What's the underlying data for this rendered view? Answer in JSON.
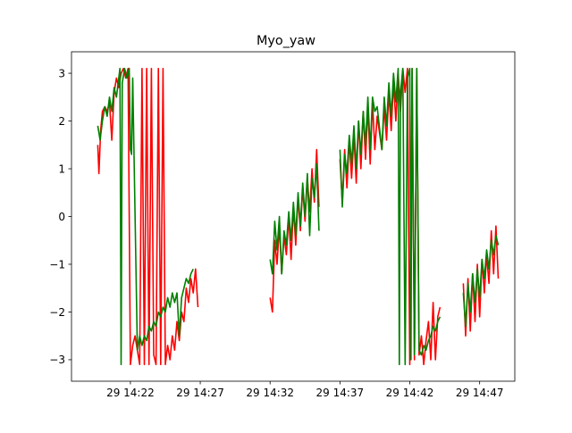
{
  "chart_data": {
    "type": "line",
    "title": "Myo_yaw",
    "xlabel": "",
    "ylabel": "",
    "x_axis_kind": "time",
    "xlim": [
      "29 14:17:47",
      "29 14:49:31"
    ],
    "ylim": [
      -3.45,
      3.45
    ],
    "x_ticks": [
      {
        "value": "29 14:22",
        "label": "29 14:22"
      },
      {
        "value": "29 14:27",
        "label": "29 14:27"
      },
      {
        "value": "29 14:32",
        "label": "29 14:32"
      },
      {
        "value": "29 14:37",
        "label": "29 14:37"
      },
      {
        "value": "29 14:42",
        "label": "29 14:42"
      },
      {
        "value": "29 14:47",
        "label": "29 14:47"
      }
    ],
    "y_ticks": [
      {
        "value": -3,
        "label": "−3"
      },
      {
        "value": -2,
        "label": "−2"
      },
      {
        "value": -1,
        "label": "−1"
      },
      {
        "value": 0,
        "label": "0"
      },
      {
        "value": 1,
        "label": "1"
      },
      {
        "value": 2,
        "label": "2"
      },
      {
        "value": 3,
        "label": "3"
      }
    ],
    "grid": false,
    "legend": "none",
    "series": [
      {
        "color": "#ff0000",
        "points": [
          [
            "29 14:19:40",
            1.5
          ],
          [
            "29 14:19:45",
            0.9
          ],
          [
            "29 14:19:52",
            1.8
          ],
          [
            "29 14:20:00",
            2.2
          ],
          [
            "29 14:20:10",
            2.3
          ],
          [
            "29 14:20:20",
            2.2
          ],
          [
            "29 14:20:30",
            2.4
          ],
          [
            "29 14:20:40",
            1.6
          ],
          [
            "29 14:20:50",
            2.6
          ],
          [
            "29 14:21:00",
            2.9
          ],
          [
            "29 14:21:10",
            2.7
          ],
          [
            "29 14:21:20",
            3.0
          ],
          [
            "29 14:21:30",
            3.1
          ],
          [
            "29 14:21:40",
            2.9
          ],
          [
            "29 14:21:50",
            3.1
          ],
          [
            "29 14:22:00",
            -3.1
          ],
          [
            "29 14:22:10",
            -2.7
          ],
          [
            "29 14:22:20",
            -2.5
          ],
          [
            "29 14:22:30",
            -2.8
          ],
          [
            "29 14:22:40",
            -3.1
          ],
          [
            "29 14:22:50",
            3.1
          ],
          [
            "29 14:23:00",
            -3.1
          ],
          [
            "29 14:23:10",
            3.1
          ],
          [
            "29 14:23:20",
            -3.1
          ],
          [
            "29 14:23:30",
            3.1
          ],
          [
            "29 14:23:40",
            -2.9
          ],
          [
            "29 14:23:50",
            -3.1
          ],
          [
            "29 14:24:00",
            3.1
          ],
          [
            "29 14:24:10",
            -3.1
          ],
          [
            "29 14:24:20",
            3.1
          ],
          [
            "29 14:24:30",
            -3.1
          ],
          [
            "29 14:24:40",
            -2.7
          ],
          [
            "29 14:24:50",
            -3.0
          ],
          [
            "29 14:25:00",
            -2.5
          ],
          [
            "29 14:25:10",
            -2.8
          ],
          [
            "29 14:25:20",
            -2.2
          ],
          [
            "29 14:25:30",
            -2.6
          ],
          [
            "29 14:25:40",
            -2.0
          ],
          [
            "29 14:25:50",
            -2.2
          ],
          [
            "29 14:26:00",
            -1.5
          ],
          [
            "29 14:26:10",
            -1.8
          ],
          [
            "29 14:26:20",
            -1.3
          ],
          [
            "29 14:26:30",
            -1.6
          ],
          [
            "29 14:26:40",
            -1.1
          ],
          [
            "29 14:26:50",
            -1.9
          ],
          [
            "29 14:32:00",
            -1.7
          ],
          [
            "29 14:32:10",
            -2.0
          ],
          [
            "29 14:32:20",
            -0.5
          ],
          [
            "29 14:32:30",
            -1.0
          ],
          [
            "29 14:32:40",
            -0.2
          ],
          [
            "29 14:32:50",
            -1.2
          ],
          [
            "29 14:33:00",
            -0.4
          ],
          [
            "29 14:33:10",
            -0.8
          ],
          [
            "29 14:33:20",
            0.0
          ],
          [
            "29 14:33:30",
            -0.9
          ],
          [
            "29 14:33:40",
            0.2
          ],
          [
            "29 14:33:50",
            -0.6
          ],
          [
            "29 14:34:00",
            0.4
          ],
          [
            "29 14:34:10",
            -0.3
          ],
          [
            "29 14:34:20",
            0.6
          ],
          [
            "29 14:34:30",
            -0.1
          ],
          [
            "29 14:34:40",
            0.8
          ],
          [
            "29 14:34:50",
            0.1
          ],
          [
            "29 14:35:00",
            1.0
          ],
          [
            "29 14:35:10",
            0.3
          ],
          [
            "29 14:35:20",
            1.4
          ],
          [
            "29 14:35:30",
            0.2
          ],
          [
            "29 14:37:00",
            1.2
          ],
          [
            "29 14:37:10",
            0.3
          ],
          [
            "29 14:37:20",
            1.4
          ],
          [
            "29 14:37:30",
            0.6
          ],
          [
            "29 14:37:40",
            1.6
          ],
          [
            "29 14:37:50",
            0.8
          ],
          [
            "29 14:38:00",
            1.7
          ],
          [
            "29 14:38:10",
            0.7
          ],
          [
            "29 14:38:20",
            2.0
          ],
          [
            "29 14:38:30",
            1.0
          ],
          [
            "29 14:38:40",
            2.2
          ],
          [
            "29 14:38:50",
            1.2
          ],
          [
            "29 14:39:00",
            2.3
          ],
          [
            "29 14:39:10",
            1.1
          ],
          [
            "29 14:39:20",
            2.4
          ],
          [
            "29 14:39:30",
            1.4
          ],
          [
            "29 14:39:40",
            2.1
          ],
          [
            "29 14:40:00",
            1.4
          ],
          [
            "29 14:40:10",
            2.3
          ],
          [
            "29 14:40:20",
            1.6
          ],
          [
            "29 14:40:30",
            2.6
          ],
          [
            "29 14:40:40",
            1.8
          ],
          [
            "29 14:40:50",
            2.8
          ],
          [
            "29 14:41:00",
            2.0
          ],
          [
            "29 14:41:10",
            3.0
          ],
          [
            "29 14:41:20",
            2.2
          ],
          [
            "29 14:41:30",
            3.1
          ],
          [
            "29 14:41:40",
            2.6
          ],
          [
            "29 14:41:50",
            3.1
          ],
          [
            "29 14:42:00",
            -3.1
          ],
          [
            "29 14:42:10",
            3.1
          ],
          [
            "29 14:42:20",
            -3.0
          ],
          [
            "29 14:42:30",
            3.1
          ],
          [
            "29 14:42:40",
            -2.9
          ],
          [
            "29 14:42:50",
            -2.5
          ],
          [
            "29 14:43:00",
            -3.1
          ],
          [
            "29 14:43:10",
            -2.6
          ],
          [
            "29 14:43:20",
            -2.2
          ],
          [
            "29 14:43:30",
            -3.0
          ],
          [
            "29 14:43:40",
            -1.8
          ],
          [
            "29 14:43:50",
            -3.0
          ],
          [
            "29 14:44:00",
            -2.1
          ],
          [
            "29 14:44:10",
            -1.9
          ],
          [
            "29 14:45:50",
            -1.4
          ],
          [
            "29 14:46:00",
            -2.5
          ],
          [
            "29 14:46:10",
            -1.3
          ],
          [
            "29 14:46:20",
            -2.4
          ],
          [
            "29 14:46:30",
            -1.2
          ],
          [
            "29 14:46:40",
            -2.2
          ],
          [
            "29 14:46:50",
            -1.0
          ],
          [
            "29 14:47:00",
            -2.1
          ],
          [
            "29 14:47:10",
            -0.9
          ],
          [
            "29 14:47:20",
            -1.6
          ],
          [
            "29 14:47:30",
            -0.8
          ],
          [
            "29 14:47:40",
            -1.4
          ],
          [
            "29 14:47:50",
            -0.3
          ],
          [
            "29 14:48:00",
            -1.2
          ],
          [
            "29 14:48:10",
            -0.2
          ],
          [
            "29 14:48:20",
            -1.3
          ]
        ]
      },
      {
        "color": "#008000",
        "points": [
          [
            "29 14:19:40",
            1.9
          ],
          [
            "29 14:19:50",
            1.6
          ],
          [
            "29 14:20:00",
            2.0
          ],
          [
            "29 14:20:10",
            2.3
          ],
          [
            "29 14:20:20",
            2.1
          ],
          [
            "29 14:20:30",
            2.5
          ],
          [
            "29 14:20:40",
            2.2
          ],
          [
            "29 14:20:50",
            2.7
          ],
          [
            "29 14:21:00",
            2.5
          ],
          [
            "29 14:21:10",
            2.9
          ],
          [
            "29 14:21:15",
            3.1
          ],
          [
            "29 14:21:20",
            -3.1
          ],
          [
            "29 14:21:25",
            2.8
          ],
          [
            "29 14:21:35",
            3.1
          ],
          [
            "29 14:21:45",
            2.9
          ],
          [
            "29 14:21:55",
            3.1
          ],
          [
            "29 14:22:00",
            1.4
          ],
          [
            "29 14:22:05",
            1.3
          ],
          [
            "29 14:22:10",
            2.9
          ],
          [
            "29 14:22:30",
            -2.8
          ],
          [
            "29 14:22:40",
            -2.5
          ],
          [
            "29 14:22:50",
            -2.7
          ],
          [
            "29 14:23:00",
            -2.5
          ],
          [
            "29 14:23:10",
            -2.6
          ],
          [
            "29 14:23:20",
            -2.3
          ],
          [
            "29 14:23:30",
            -2.4
          ],
          [
            "29 14:23:40",
            -2.2
          ],
          [
            "29 14:23:50",
            -2.3
          ],
          [
            "29 14:24:00",
            -2.0
          ],
          [
            "29 14:24:10",
            -2.1
          ],
          [
            "29 14:24:20",
            -1.9
          ],
          [
            "29 14:24:30",
            -2.0
          ],
          [
            "29 14:24:40",
            -1.7
          ],
          [
            "29 14:24:50",
            -1.9
          ],
          [
            "29 14:25:00",
            -1.6
          ],
          [
            "29 14:25:10",
            -1.8
          ],
          [
            "29 14:25:20",
            -1.6
          ],
          [
            "29 14:25:30",
            -2.5
          ],
          [
            "29 14:25:40",
            -1.7
          ],
          [
            "29 14:25:50",
            -1.5
          ],
          [
            "29 14:26:00",
            -1.3
          ],
          [
            "29 14:26:10",
            -1.4
          ],
          [
            "29 14:26:20",
            -1.2
          ],
          [
            "29 14:26:30",
            -1.1
          ],
          [
            "29 14:32:00",
            -0.9
          ],
          [
            "29 14:32:10",
            -1.2
          ],
          [
            "29 14:32:20",
            -0.1
          ],
          [
            "29 14:32:30",
            -0.7
          ],
          [
            "29 14:32:40",
            0.0
          ],
          [
            "29 14:32:50",
            -1.2
          ],
          [
            "29 14:33:00",
            -0.3
          ],
          [
            "29 14:33:10",
            -0.6
          ],
          [
            "29 14:33:20",
            0.1
          ],
          [
            "29 14:33:30",
            -0.5
          ],
          [
            "29 14:33:40",
            0.3
          ],
          [
            "29 14:33:50",
            -0.4
          ],
          [
            "29 14:34:00",
            0.5
          ],
          [
            "29 14:34:10",
            -0.2
          ],
          [
            "29 14:34:20",
            0.7
          ],
          [
            "29 14:34:30",
            0.0
          ],
          [
            "29 14:34:40",
            0.9
          ],
          [
            "29 14:34:50",
            -0.4
          ],
          [
            "29 14:35:00",
            0.8
          ],
          [
            "29 14:35:10",
            0.4
          ],
          [
            "29 14:35:20",
            1.1
          ],
          [
            "29 14:35:30",
            -0.3
          ],
          [
            "29 14:37:00",
            1.4
          ],
          [
            "29 14:37:10",
            0.2
          ],
          [
            "29 14:37:20",
            1.3
          ],
          [
            "29 14:37:30",
            0.9
          ],
          [
            "29 14:37:40",
            1.7
          ],
          [
            "29 14:37:50",
            1.1
          ],
          [
            "29 14:38:00",
            1.9
          ],
          [
            "29 14:38:10",
            1.0
          ],
          [
            "29 14:38:20",
            2.0
          ],
          [
            "29 14:38:30",
            1.3
          ],
          [
            "29 14:38:40",
            2.2
          ],
          [
            "29 14:38:50",
            1.5
          ],
          [
            "29 14:39:00",
            2.5
          ],
          [
            "29 14:39:10",
            1.4
          ],
          [
            "29 14:39:20",
            2.5
          ],
          [
            "29 14:39:30",
            2.2
          ],
          [
            "29 14:39:40",
            2.3
          ],
          [
            "29 14:40:00",
            1.4
          ],
          [
            "29 14:40:10",
            2.5
          ],
          [
            "29 14:40:20",
            1.9
          ],
          [
            "29 14:40:30",
            2.8
          ],
          [
            "29 14:40:40",
            2.1
          ],
          [
            "29 14:40:50",
            3.0
          ],
          [
            "29 14:41:00",
            2.4
          ],
          [
            "29 14:41:10",
            3.1
          ],
          [
            "29 14:41:15",
            -3.1
          ],
          [
            "29 14:41:20",
            2.6
          ],
          [
            "29 14:41:30",
            3.1
          ],
          [
            "29 14:41:40",
            -3.1
          ],
          [
            "29 14:41:50",
            2.9
          ],
          [
            "29 14:42:00",
            3.1
          ],
          [
            "29 14:42:05",
            -3.0
          ],
          [
            "29 14:42:10",
            3.1
          ],
          [
            "29 14:42:20",
            -2.9
          ],
          [
            "29 14:42:30",
            3.1
          ],
          [
            "29 14:42:40",
            -2.8
          ],
          [
            "29 14:42:50",
            -2.9
          ],
          [
            "29 14:43:00",
            -2.7
          ],
          [
            "29 14:43:10",
            -2.8
          ],
          [
            "29 14:43:20",
            -2.6
          ],
          [
            "29 14:43:30",
            -2.5
          ],
          [
            "29 14:43:40",
            -2.3
          ],
          [
            "29 14:43:50",
            -2.4
          ],
          [
            "29 14:44:00",
            -2.2
          ],
          [
            "29 14:44:10",
            -2.1
          ],
          [
            "29 14:45:50",
            -1.6
          ],
          [
            "29 14:46:00",
            -2.3
          ],
          [
            "29 14:46:10",
            -1.4
          ],
          [
            "29 14:46:20",
            -2.0
          ],
          [
            "29 14:46:30",
            -1.2
          ],
          [
            "29 14:46:40",
            -1.8
          ],
          [
            "29 14:46:50",
            -1.1
          ],
          [
            "29 14:47:00",
            -1.7
          ],
          [
            "29 14:47:10",
            -0.9
          ],
          [
            "29 14:47:20",
            -1.3
          ],
          [
            "29 14:47:30",
            -0.7
          ],
          [
            "29 14:47:40",
            -1.1
          ],
          [
            "29 14:47:50",
            -0.5
          ],
          [
            "29 14:48:00",
            -0.8
          ],
          [
            "29 14:48:10",
            -0.4
          ],
          [
            "29 14:48:20",
            -0.6
          ]
        ]
      }
    ]
  }
}
